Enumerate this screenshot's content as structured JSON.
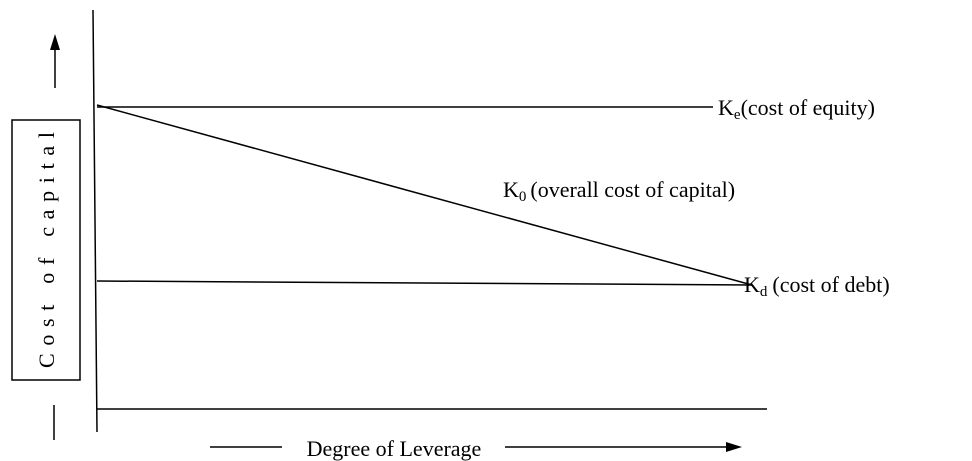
{
  "y_axis_label": "Cost of capital",
  "x_axis_label": "Degree of Leverage",
  "curves": [
    {
      "symbol": "K",
      "subscript": "e",
      "description": "(cost of equity)"
    },
    {
      "symbol": "K",
      "subscript": "0",
      "description": "(overall cost of capital)"
    },
    {
      "symbol": "K",
      "subscript": "d",
      "description": "(cost of debt)"
    }
  ]
}
